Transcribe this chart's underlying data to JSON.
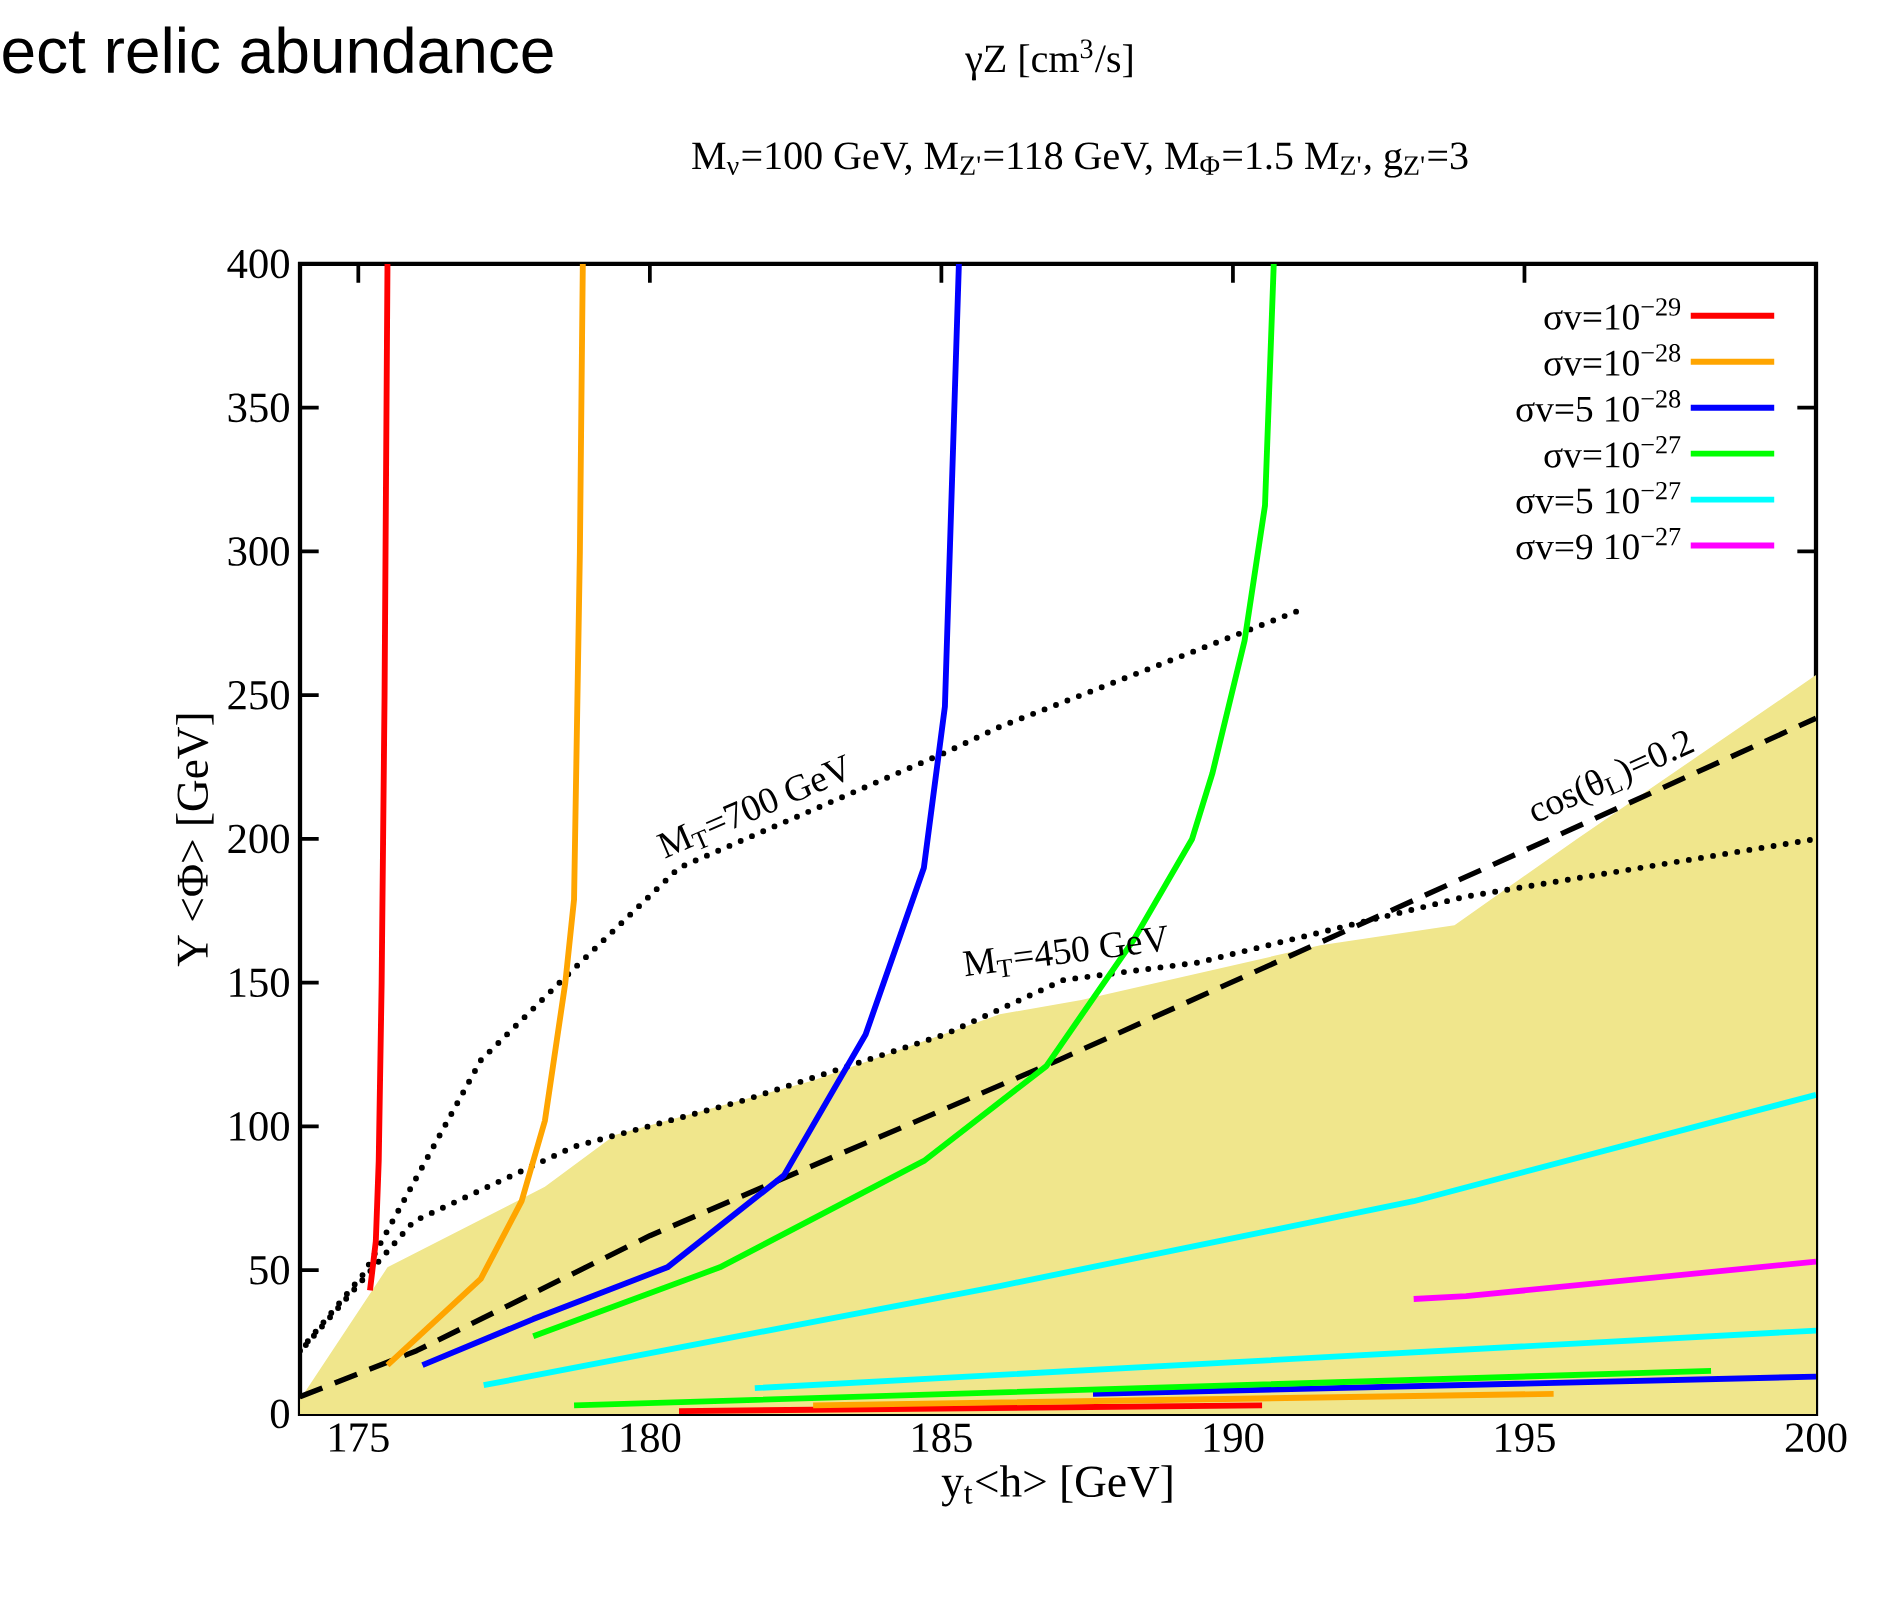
{
  "chart_data": {
    "type": "line",
    "title": "ect relic abundance",
    "subtitle": "M$_{ν}$=100 GeV, M$_{Z'}$=118 GeV, M$_{Φ}$=1.5 M$_{Z'}$, g$_{Z'}$=3",
    "xlabel": "y$_{t}$<h> [GeV]",
    "ylabel": "Y <Φ> [GeV]",
    "annotations": [
      "γZ   [cm$^{3}$/s]",
      {
        "text": "M$_{T}$=700 GeV",
        "x": 182,
        "y": 202
      },
      {
        "text": "M$_{T}$=450 GeV",
        "x": 187.2,
        "y": 151
      },
      {
        "text": "cos(θ$_{L}$)=0.2",
        "x": 196.7,
        "y": 212
      }
    ],
    "xlim": [
      174,
      200
    ],
    "ylim": [
      0,
      400
    ],
    "xticks": [
      175,
      180,
      185,
      190,
      195,
      200
    ],
    "yticks": [
      0,
      50,
      100,
      150,
      200,
      250,
      300,
      350,
      400
    ],
    "legend": "top right",
    "grid": false,
    "series": [
      {
        "type": "area",
        "color": "#f0e68c",
        "x": [
          174,
          175.5,
          178.2,
          179.4,
          182.8,
          186,
          187.4,
          191.5,
          193.8,
          195.9,
          200
        ],
        "values": [
          5,
          51,
          79,
          97,
          116,
          139,
          144,
          163,
          170,
          200,
          257
        ]
      },
      {
        "color": "#000000",
        "line_style": "dotted",
        "x": [
          174,
          175.1,
          177.1,
          178.55,
          180.5,
          185.06,
          186,
          191.2
        ],
        "values": [
          22,
          49,
          123,
          152,
          190,
          230,
          239,
          280
        ]
      },
      {
        "color": "#000000",
        "line_style": "dotted",
        "x": [
          174.1,
          175.95,
          178.7,
          181.6,
          185.06,
          187.1,
          189.4,
          194,
          200
        ],
        "values": [
          24,
          67,
          93,
          109,
          132,
          151,
          157,
          180,
          200
        ]
      },
      {
        "color": "#000000",
        "line_style": "dashed",
        "x": [
          174,
          176,
          180,
          187,
          195,
          200
        ],
        "values": [
          6,
          22,
          62,
          123,
          196,
          242
        ]
      },
      {
        "name": "σv=10$^{−29}$",
        "color": "#ff0000",
        "x": [
          175.2,
          175.3,
          175.35,
          175.4,
          175.45,
          175.5,
          null,
          180.5,
          190.5
        ],
        "values": [
          43,
          60,
          88,
          150,
          250,
          400,
          null,
          1,
          3
        ]
      },
      {
        "name": "σv=10$^{−28}$",
        "color": "#ffa500",
        "x": [
          175.5,
          177.1,
          177.8,
          178.2,
          178.55,
          178.7,
          178.8,
          178.85,
          null,
          182.8,
          195.5
        ],
        "values": [
          17,
          47,
          74,
          102,
          150,
          179,
          300,
          400,
          null,
          3,
          7
        ]
      },
      {
        "name": "σv=5 10$^{−28}$",
        "color": "#0000ff",
        "x": [
          176.1,
          178,
          180.3,
          182.3,
          183.7,
          184.7,
          185.06,
          185.3,
          null,
          187.6,
          200
        ],
        "values": [
          17,
          33,
          51,
          83,
          132,
          190,
          246,
          400,
          null,
          7,
          13
        ]
      },
      {
        "name": "σv=10$^{−27}$",
        "color": "#00ff00",
        "x": [
          178,
          181.2,
          184.7,
          186.8,
          188.3,
          189.3,
          189.65,
          190.2,
          190.55,
          190.7,
          null,
          178.7,
          198.2
        ],
        "values": [
          27,
          51,
          88,
          121,
          165,
          200,
          223,
          269,
          316,
          400,
          null,
          3,
          15
        ]
      },
      {
        "name": "σv=5 10$^{−27}$",
        "color": "#00ffff",
        "x": [
          177.15,
          186,
          193.1,
          200,
          null,
          181.8,
          200
        ],
        "values": [
          10,
          44.5,
          74,
          111,
          null,
          9,
          29
        ]
      },
      {
        "name": "σv=9 10$^{−27}$",
        "color": "#ff00ff",
        "x": [
          193.1,
          194,
          196,
          198,
          200
        ],
        "values": [
          40,
          41,
          45,
          49,
          53
        ]
      }
    ]
  }
}
